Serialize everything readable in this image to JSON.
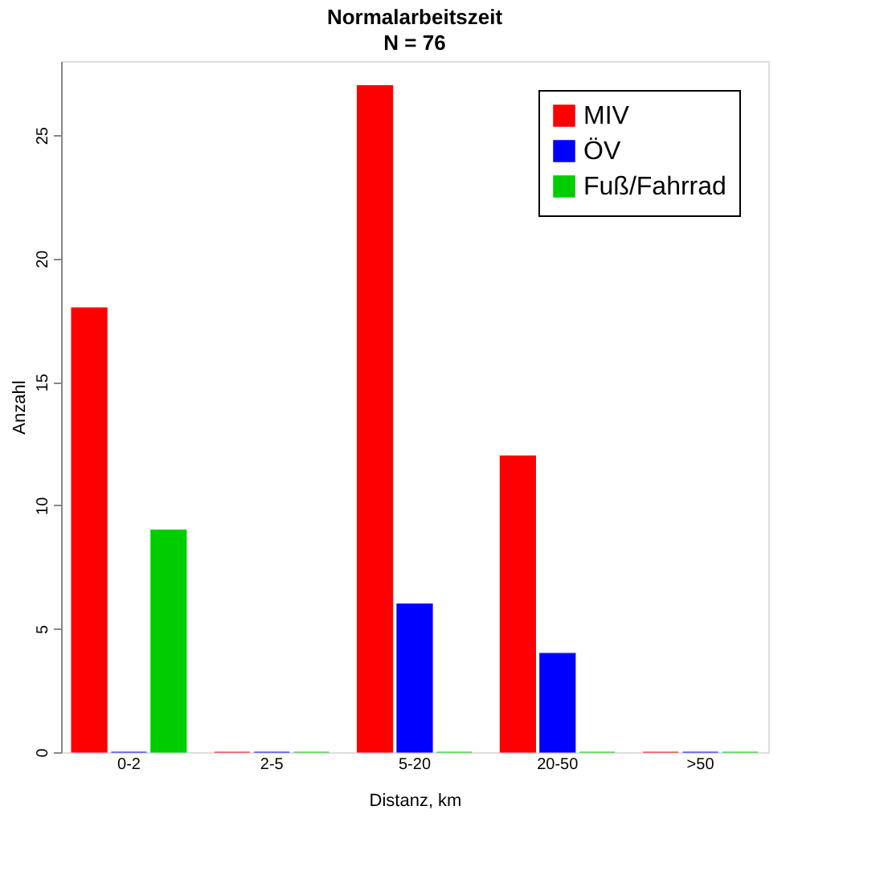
{
  "chart_data": {
    "type": "bar",
    "title": "Normalarbeitszeit",
    "subtitle": "N =  76",
    "xlabel": "Distanz, km",
    "ylabel": "Anzahl",
    "categories": [
      "0-2",
      "2-5",
      "5-20",
      "20-50",
      ">50"
    ],
    "series": [
      {
        "name": "MIV",
        "color": "#ff0000",
        "values": [
          18,
          0,
          27,
          12,
          0
        ]
      },
      {
        "name": "ÖV",
        "color": "#0000ff",
        "values": [
          0,
          0,
          6,
          4,
          0
        ]
      },
      {
        "name": "Fuß/Fahrrad",
        "color": "#00cd00",
        "values": [
          9,
          0,
          0,
          0,
          0
        ]
      }
    ],
    "ylim": [
      0,
      28
    ],
    "yticks": [
      0,
      5,
      10,
      15,
      20,
      25
    ],
    "grid": false,
    "legend": "top right"
  }
}
